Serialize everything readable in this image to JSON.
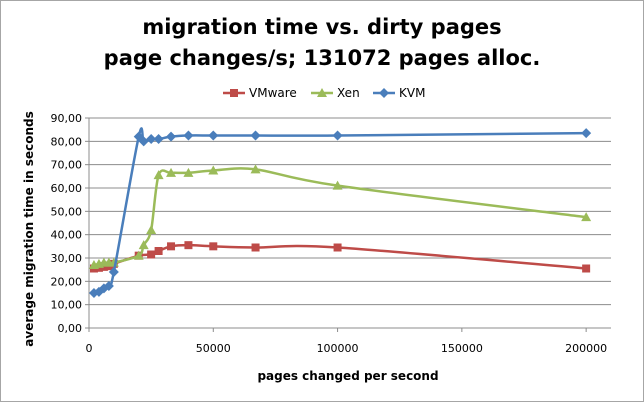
{
  "chart_data": {
    "type": "line",
    "title_lines": [
      "migration time vs. dirty pages",
      "page changes/s; 131072 pages alloc."
    ],
    "xlabel": "pages changed per second",
    "ylabel": "average migration time in seconds",
    "xlim": [
      0,
      210000
    ],
    "ylim": [
      0,
      90
    ],
    "x_ticks": [
      0,
      50000,
      100000,
      150000,
      200000
    ],
    "x_tick_labels": [
      "0",
      "50000",
      "100000",
      "150000",
      "200000"
    ],
    "y_ticks": [
      0,
      10,
      20,
      30,
      40,
      50,
      60,
      70,
      80,
      90
    ],
    "y_tick_labels": [
      "0,00",
      "10,00",
      "20,00",
      "30,00",
      "40,00",
      "50,00",
      "60,00",
      "70,00",
      "80,00",
      "90,00"
    ],
    "grid": "horizontal",
    "legend_position": "top",
    "series": [
      {
        "name": "VMware",
        "color": "#be4b48",
        "marker": "square",
        "x": [
          2000,
          4000,
          6000,
          8000,
          10000,
          20000,
          25000,
          28000,
          33000,
          40000,
          50000,
          67000,
          100000,
          200000
        ],
        "y": [
          25.5,
          25.8,
          26.2,
          26.5,
          27.5,
          31,
          31.5,
          33,
          35,
          35.5,
          35,
          34.5,
          34.5,
          25.5
        ]
      },
      {
        "name": "Xen",
        "color": "#9bbb59",
        "marker": "triangle",
        "x": [
          2000,
          4000,
          6000,
          8000,
          10000,
          20000,
          22000,
          25000,
          28000,
          33000,
          40000,
          50000,
          67000,
          100000,
          200000
        ],
        "y": [
          27,
          27.5,
          28,
          28,
          28,
          31,
          35.5,
          42,
          65.5,
          66.5,
          66.5,
          67.5,
          68,
          61,
          47.5
        ]
      },
      {
        "name": "KVM",
        "color": "#4a7ebb",
        "marker": "diamond",
        "x": [
          2000,
          4000,
          6000,
          8000,
          10000,
          20000,
          22000,
          25000,
          28000,
          33000,
          40000,
          50000,
          67000,
          100000,
          200000
        ],
        "y": [
          15,
          15.5,
          17,
          18,
          24,
          82,
          80,
          81,
          81,
          82,
          82.5,
          82.5,
          82.5,
          82.5,
          83.5
        ]
      }
    ]
  }
}
